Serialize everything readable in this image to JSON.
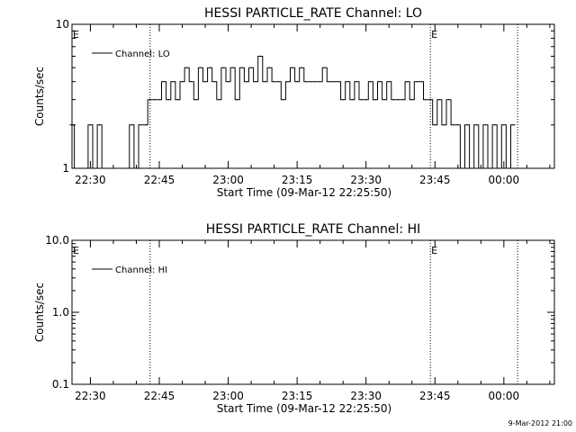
{
  "footer": {
    "stamp": "9-Mar-2012 21:00"
  },
  "chart_data": [
    {
      "type": "line",
      "title": "HESSI PARTICLE_RATE Channel: LO",
      "xlabel": "Start Time (09-Mar-12 22:25:50)",
      "ylabel": "Counts/sec",
      "yscale": "log",
      "ylim": [
        1,
        10
      ],
      "ytick_labels": [
        "1",
        "10"
      ],
      "xlim": [
        "22:26",
        "00:11"
      ],
      "xtick_labels": [
        "22:30",
        "22:45",
        "23:00",
        "23:15",
        "23:30",
        "23:45",
        "00:00"
      ],
      "legend": {
        "label": "Channel: LO",
        "position": "top-left"
      },
      "event_markers": [
        {
          "time": "22:43",
          "label": ""
        },
        {
          "time": "23:44",
          "label": "E"
        },
        {
          "time": "00:03",
          "label": ""
        },
        {
          "time": "22:26",
          "label": "E"
        }
      ],
      "series": [
        {
          "x": [
            "22:26",
            "22:27",
            "22:28",
            "22:29",
            "22:30",
            "22:31",
            "22:32",
            "22:33",
            "22:34",
            "22:35",
            "22:38",
            "22:39",
            "22:40",
            "22:41",
            "22:42",
            "22:43",
            "22:44",
            "22:45",
            "22:46",
            "22:47",
            "22:48",
            "22:49",
            "22:50",
            "22:51",
            "22:52",
            "22:53",
            "22:54",
            "22:55",
            "22:56",
            "22:57",
            "22:58",
            "22:59",
            "23:00",
            "23:01",
            "23:02",
            "23:03",
            "23:04",
            "23:05",
            "23:06",
            "23:07",
            "23:08",
            "23:09",
            "23:10",
            "23:11",
            "23:12",
            "23:13",
            "23:14",
            "23:15",
            "23:16",
            "23:17",
            "23:18",
            "23:19",
            "23:20",
            "23:21",
            "23:22",
            "23:23",
            "23:24",
            "23:25",
            "23:26",
            "23:27",
            "23:28",
            "23:29",
            "23:30",
            "23:31",
            "23:32",
            "23:33",
            "23:34",
            "23:35",
            "23:36",
            "23:37",
            "23:38",
            "23:39",
            "23:40",
            "23:41",
            "23:42",
            "23:43",
            "23:44",
            "23:45",
            "23:46",
            "23:47",
            "23:48",
            "23:49",
            "23:50",
            "23:51",
            "23:52",
            "23:53",
            "23:54",
            "23:55",
            "23:56",
            "23:57",
            "23:58",
            "23:59",
            "00:00",
            "00:01",
            "00:02"
          ],
          "y": [
            2,
            1,
            1,
            1,
            2,
            1,
            2,
            1,
            1,
            1,
            1,
            2,
            1,
            2,
            2,
            3,
            3,
            3,
            4,
            3,
            4,
            3,
            4,
            5,
            4,
            3,
            5,
            4,
            5,
            4,
            3,
            5,
            4,
            5,
            3,
            5,
            4,
            5,
            4,
            6,
            4,
            5,
            4,
            4,
            3,
            4,
            5,
            4,
            5,
            4,
            4,
            4,
            4,
            5,
            4,
            4,
            4,
            3,
            4,
            3,
            4,
            3,
            3,
            4,
            3,
            4,
            3,
            4,
            3,
            3,
            3,
            4,
            3,
            4,
            4,
            3,
            3,
            2,
            3,
            2,
            3,
            2,
            2,
            1,
            2,
            1,
            2,
            1,
            2,
            1,
            2,
            1,
            2,
            1,
            2
          ]
        }
      ]
    },
    {
      "type": "line",
      "title": "HESSI PARTICLE_RATE Channel: HI",
      "xlabel": "Start Time (09-Mar-12 22:25:50)",
      "ylabel": "Counts/sec",
      "yscale": "log",
      "ylim": [
        0.1,
        10
      ],
      "ytick_labels": [
        "0.1",
        "1.0",
        "10.0"
      ],
      "xlim": [
        "22:26",
        "00:11"
      ],
      "xtick_labels": [
        "22:30",
        "22:45",
        "23:00",
        "23:15",
        "23:30",
        "23:45",
        "00:00"
      ],
      "legend": {
        "label": "Channel: HI",
        "position": "top-left"
      },
      "event_markers": [
        {
          "time": "22:43",
          "label": ""
        },
        {
          "time": "23:44",
          "label": "E"
        },
        {
          "time": "00:03",
          "label": ""
        },
        {
          "time": "22:26",
          "label": "E"
        }
      ],
      "series": [
        {
          "x": [],
          "y": []
        }
      ]
    }
  ]
}
